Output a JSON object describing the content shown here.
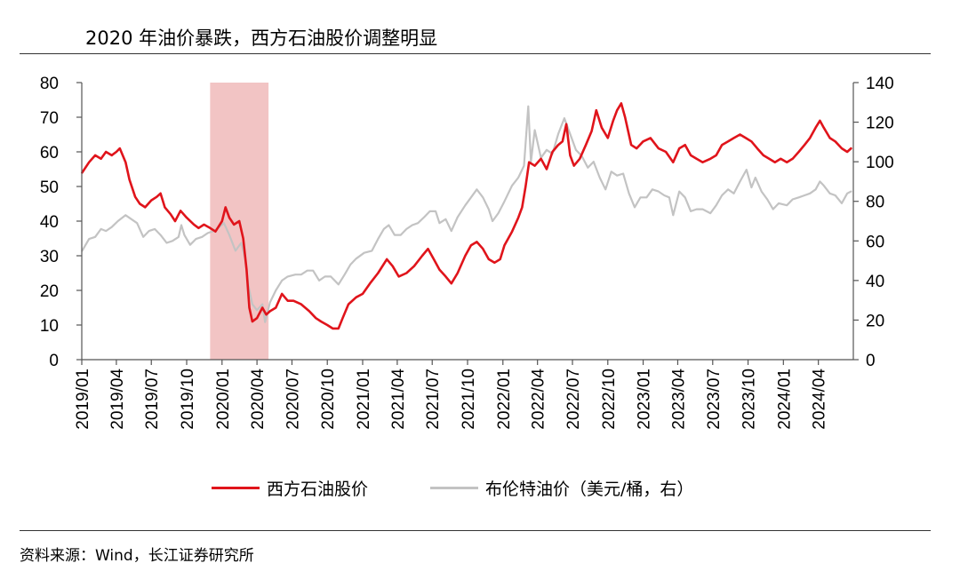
{
  "title": "2020 年油价暴跌，西方石油股价调整明显",
  "source": "资料来源：Wind，长江证券研究所",
  "chart_data": {
    "type": "line",
    "title": "2020 年油价暴跌，西方石油股价调整明显",
    "x_axis": {
      "type": "date",
      "range": [
        "2019-01",
        "2024-07"
      ],
      "tick_labels": [
        "2019/01",
        "2019/04",
        "2019/07",
        "2019/10",
        "2020/01",
        "2020/04",
        "2020/07",
        "2020/10",
        "2021/01",
        "2021/04",
        "2021/07",
        "2021/10",
        "2022/01",
        "2022/04",
        "2022/07",
        "2022/10",
        "2023/01",
        "2023/04",
        "2023/07",
        "2023/10",
        "2024/01",
        "2024/04"
      ]
    },
    "y_left": {
      "min": 0,
      "max": 80,
      "tick_labels": [
        "0",
        "10",
        "20",
        "30",
        "40",
        "50",
        "60",
        "70",
        "80"
      ]
    },
    "y_right": {
      "min": 0,
      "max": 140,
      "tick_labels": [
        "0",
        "20",
        "40",
        "60",
        "80",
        "100",
        "120",
        "140"
      ]
    },
    "shaded_region": {
      "from": "2019-12",
      "to": "2020-05",
      "color": "#f2c4c4"
    },
    "grid": false,
    "legend_position": "bottom",
    "series": [
      {
        "name": "西方石油股价",
        "axis": "left",
        "color": "#e0141b",
        "points": [
          [
            "2019-01-02",
            54
          ],
          [
            "2019-01-20",
            57
          ],
          [
            "2019-02-05",
            59
          ],
          [
            "2019-02-20",
            58
          ],
          [
            "2019-03-05",
            60
          ],
          [
            "2019-03-20",
            59
          ],
          [
            "2019-04-01",
            60
          ],
          [
            "2019-04-10",
            61
          ],
          [
            "2019-04-25",
            57
          ],
          [
            "2019-05-05",
            52
          ],
          [
            "2019-05-20",
            47
          ],
          [
            "2019-06-01",
            45
          ],
          [
            "2019-06-15",
            44
          ],
          [
            "2019-07-01",
            46
          ],
          [
            "2019-07-15",
            47
          ],
          [
            "2019-07-25",
            48
          ],
          [
            "2019-08-05",
            44
          ],
          [
            "2019-08-20",
            42
          ],
          [
            "2019-09-01",
            40
          ],
          [
            "2019-09-15",
            43
          ],
          [
            "2019-10-01",
            41
          ],
          [
            "2019-10-20",
            39
          ],
          [
            "2019-11-01",
            38
          ],
          [
            "2019-11-15",
            39
          ],
          [
            "2019-12-01",
            38
          ],
          [
            "2019-12-15",
            37
          ],
          [
            "2020-01-01",
            40
          ],
          [
            "2020-01-10",
            44
          ],
          [
            "2020-01-20",
            41
          ],
          [
            "2020-02-01",
            39
          ],
          [
            "2020-02-15",
            40
          ],
          [
            "2020-02-25",
            35
          ],
          [
            "2020-03-05",
            26
          ],
          [
            "2020-03-12",
            15
          ],
          [
            "2020-03-20",
            11
          ],
          [
            "2020-04-01",
            12
          ],
          [
            "2020-04-15",
            15
          ],
          [
            "2020-04-25",
            13
          ],
          [
            "2020-05-05",
            14
          ],
          [
            "2020-05-20",
            15
          ],
          [
            "2020-06-05",
            19
          ],
          [
            "2020-06-20",
            17
          ],
          [
            "2020-07-05",
            17
          ],
          [
            "2020-07-25",
            16
          ],
          [
            "2020-08-15",
            14
          ],
          [
            "2020-09-01",
            12
          ],
          [
            "2020-09-15",
            11
          ],
          [
            "2020-10-01",
            10
          ],
          [
            "2020-10-15",
            9
          ],
          [
            "2020-10-30",
            9
          ],
          [
            "2020-11-10",
            12
          ],
          [
            "2020-11-25",
            16
          ],
          [
            "2020-12-15",
            18
          ],
          [
            "2021-01-01",
            19
          ],
          [
            "2021-01-20",
            22
          ],
          [
            "2021-02-10",
            25
          ],
          [
            "2021-03-05",
            29
          ],
          [
            "2021-03-20",
            27
          ],
          [
            "2021-04-05",
            24
          ],
          [
            "2021-04-25",
            25
          ],
          [
            "2021-05-15",
            27
          ],
          [
            "2021-06-05",
            30
          ],
          [
            "2021-06-20",
            32
          ],
          [
            "2021-07-05",
            29
          ],
          [
            "2021-07-20",
            26
          ],
          [
            "2021-08-05",
            24
          ],
          [
            "2021-08-20",
            22
          ],
          [
            "2021-09-05",
            25
          ],
          [
            "2021-09-25",
            30
          ],
          [
            "2021-10-10",
            33
          ],
          [
            "2021-10-25",
            34
          ],
          [
            "2021-11-10",
            32
          ],
          [
            "2021-11-25",
            29
          ],
          [
            "2021-12-10",
            28
          ],
          [
            "2021-12-25",
            29
          ],
          [
            "2022-01-05",
            33
          ],
          [
            "2022-01-25",
            37
          ],
          [
            "2022-02-10",
            41
          ],
          [
            "2022-02-20",
            44
          ],
          [
            "2022-03-01",
            50
          ],
          [
            "2022-03-10",
            57
          ],
          [
            "2022-03-25",
            56
          ],
          [
            "2022-04-10",
            58
          ],
          [
            "2022-04-25",
            55
          ],
          [
            "2022-05-10",
            60
          ],
          [
            "2022-05-25",
            62
          ],
          [
            "2022-06-05",
            63
          ],
          [
            "2022-06-15",
            68
          ],
          [
            "2022-06-25",
            59
          ],
          [
            "2022-07-05",
            56
          ],
          [
            "2022-07-20",
            58
          ],
          [
            "2022-08-05",
            62
          ],
          [
            "2022-08-20",
            66
          ],
          [
            "2022-09-01",
            72
          ],
          [
            "2022-09-15",
            67
          ],
          [
            "2022-10-01",
            64
          ],
          [
            "2022-10-15",
            69
          ],
          [
            "2022-10-25",
            72
          ],
          [
            "2022-11-05",
            74
          ],
          [
            "2022-11-15",
            70
          ],
          [
            "2022-12-01",
            62
          ],
          [
            "2022-12-15",
            61
          ],
          [
            "2023-01-01",
            63
          ],
          [
            "2023-01-20",
            64
          ],
          [
            "2023-02-10",
            61
          ],
          [
            "2023-03-01",
            60
          ],
          [
            "2023-03-20",
            57
          ],
          [
            "2023-04-05",
            61
          ],
          [
            "2023-04-20",
            62
          ],
          [
            "2023-05-05",
            59
          ],
          [
            "2023-05-20",
            58
          ],
          [
            "2023-06-05",
            57
          ],
          [
            "2023-06-25",
            58
          ],
          [
            "2023-07-10",
            59
          ],
          [
            "2023-07-25",
            62
          ],
          [
            "2023-08-10",
            63
          ],
          [
            "2023-08-25",
            64
          ],
          [
            "2023-09-10",
            65
          ],
          [
            "2023-09-25",
            64
          ],
          [
            "2023-10-10",
            63
          ],
          [
            "2023-10-25",
            61
          ],
          [
            "2023-11-10",
            59
          ],
          [
            "2023-11-25",
            58
          ],
          [
            "2023-12-10",
            57
          ],
          [
            "2023-12-25",
            58
          ],
          [
            "2024-01-10",
            57
          ],
          [
            "2024-01-25",
            58
          ],
          [
            "2024-02-10",
            60
          ],
          [
            "2024-02-25",
            62
          ],
          [
            "2024-03-10",
            64
          ],
          [
            "2024-03-25",
            67
          ],
          [
            "2024-04-05",
            69
          ],
          [
            "2024-04-15",
            67
          ],
          [
            "2024-05-01",
            64
          ],
          [
            "2024-05-15",
            63
          ],
          [
            "2024-06-01",
            61
          ],
          [
            "2024-06-15",
            60
          ],
          [
            "2024-06-25",
            61
          ]
        ]
      },
      {
        "name": "布伦特油价（美元/桶，右）",
        "axis": "right",
        "color": "#c3c3c3",
        "points": [
          [
            "2019-01-02",
            55
          ],
          [
            "2019-01-20",
            61
          ],
          [
            "2019-02-05",
            62
          ],
          [
            "2019-02-20",
            66
          ],
          [
            "2019-03-05",
            65
          ],
          [
            "2019-03-20",
            67
          ],
          [
            "2019-04-05",
            70
          ],
          [
            "2019-04-25",
            73
          ],
          [
            "2019-05-10",
            71
          ],
          [
            "2019-05-25",
            69
          ],
          [
            "2019-06-10",
            62
          ],
          [
            "2019-06-25",
            65
          ],
          [
            "2019-07-10",
            66
          ],
          [
            "2019-07-25",
            63
          ],
          [
            "2019-08-10",
            59
          ],
          [
            "2019-08-25",
            60
          ],
          [
            "2019-09-10",
            62
          ],
          [
            "2019-09-17",
            68
          ],
          [
            "2019-09-25",
            63
          ],
          [
            "2019-10-10",
            58
          ],
          [
            "2019-10-25",
            61
          ],
          [
            "2019-11-10",
            62
          ],
          [
            "2019-11-25",
            64
          ],
          [
            "2019-12-10",
            65
          ],
          [
            "2019-12-25",
            67
          ],
          [
            "2020-01-06",
            69
          ],
          [
            "2020-01-20",
            63
          ],
          [
            "2020-02-05",
            55
          ],
          [
            "2020-02-20",
            59
          ],
          [
            "2020-03-01",
            51
          ],
          [
            "2020-03-10",
            37
          ],
          [
            "2020-03-20",
            28
          ],
          [
            "2020-04-01",
            25
          ],
          [
            "2020-04-15",
            28
          ],
          [
            "2020-04-22",
            19
          ],
          [
            "2020-05-05",
            29
          ],
          [
            "2020-05-20",
            35
          ],
          [
            "2020-06-05",
            40
          ],
          [
            "2020-06-20",
            42
          ],
          [
            "2020-07-10",
            43
          ],
          [
            "2020-07-25",
            43
          ],
          [
            "2020-08-10",
            45
          ],
          [
            "2020-08-25",
            45
          ],
          [
            "2020-09-10",
            40
          ],
          [
            "2020-09-25",
            42
          ],
          [
            "2020-10-10",
            42
          ],
          [
            "2020-10-30",
            38
          ],
          [
            "2020-11-15",
            43
          ],
          [
            "2020-11-30",
            48
          ],
          [
            "2020-12-15",
            51
          ],
          [
            "2021-01-05",
            54
          ],
          [
            "2021-01-25",
            55
          ],
          [
            "2021-02-10",
            61
          ],
          [
            "2021-02-25",
            66
          ],
          [
            "2021-03-10",
            68
          ],
          [
            "2021-03-25",
            63
          ],
          [
            "2021-04-10",
            63
          ],
          [
            "2021-04-25",
            66
          ],
          [
            "2021-05-10",
            68
          ],
          [
            "2021-05-25",
            69
          ],
          [
            "2021-06-10",
            72
          ],
          [
            "2021-06-25",
            75
          ],
          [
            "2021-07-10",
            75
          ],
          [
            "2021-07-20",
            69
          ],
          [
            "2021-08-05",
            71
          ],
          [
            "2021-08-20",
            65
          ],
          [
            "2021-09-05",
            72
          ],
          [
            "2021-09-25",
            78
          ],
          [
            "2021-10-10",
            82
          ],
          [
            "2021-10-25",
            86
          ],
          [
            "2021-11-10",
            82
          ],
          [
            "2021-11-25",
            76
          ],
          [
            "2021-12-05",
            70
          ],
          [
            "2021-12-20",
            74
          ],
          [
            "2022-01-05",
            80
          ],
          [
            "2022-01-25",
            88
          ],
          [
            "2022-02-10",
            92
          ],
          [
            "2022-02-25",
            98
          ],
          [
            "2022-03-08",
            128
          ],
          [
            "2022-03-15",
            100
          ],
          [
            "2022-03-25",
            116
          ],
          [
            "2022-04-10",
            102
          ],
          [
            "2022-04-25",
            106
          ],
          [
            "2022-05-10",
            104
          ],
          [
            "2022-05-25",
            114
          ],
          [
            "2022-06-10",
            122
          ],
          [
            "2022-06-25",
            114
          ],
          [
            "2022-07-10",
            106
          ],
          [
            "2022-07-25",
            103
          ],
          [
            "2022-08-10",
            97
          ],
          [
            "2022-08-25",
            100
          ],
          [
            "2022-09-10",
            92
          ],
          [
            "2022-09-25",
            86
          ],
          [
            "2022-10-10",
            95
          ],
          [
            "2022-10-25",
            93
          ],
          [
            "2022-11-10",
            94
          ],
          [
            "2022-11-25",
            84
          ],
          [
            "2022-12-10",
            77
          ],
          [
            "2022-12-25",
            82
          ],
          [
            "2023-01-10",
            82
          ],
          [
            "2023-01-25",
            86
          ],
          [
            "2023-02-10",
            85
          ],
          [
            "2023-02-25",
            83
          ],
          [
            "2023-03-10",
            82
          ],
          [
            "2023-03-20",
            73
          ],
          [
            "2023-04-05",
            85
          ],
          [
            "2023-04-20",
            82
          ],
          [
            "2023-05-05",
            75
          ],
          [
            "2023-05-20",
            76
          ],
          [
            "2023-06-05",
            76
          ],
          [
            "2023-06-25",
            74
          ],
          [
            "2023-07-10",
            78
          ],
          [
            "2023-07-25",
            83
          ],
          [
            "2023-08-10",
            86
          ],
          [
            "2023-08-25",
            84
          ],
          [
            "2023-09-10",
            90
          ],
          [
            "2023-09-27",
            96
          ],
          [
            "2023-10-10",
            87
          ],
          [
            "2023-10-20",
            92
          ],
          [
            "2023-11-05",
            85
          ],
          [
            "2023-11-20",
            81
          ],
          [
            "2023-12-05",
            76
          ],
          [
            "2023-12-20",
            79
          ],
          [
            "2024-01-10",
            78
          ],
          [
            "2024-01-25",
            81
          ],
          [
            "2024-02-10",
            82
          ],
          [
            "2024-02-25",
            83
          ],
          [
            "2024-03-10",
            84
          ],
          [
            "2024-03-25",
            86
          ],
          [
            "2024-04-05",
            90
          ],
          [
            "2024-04-15",
            88
          ],
          [
            "2024-05-01",
            84
          ],
          [
            "2024-05-15",
            83
          ],
          [
            "2024-06-01",
            79
          ],
          [
            "2024-06-15",
            84
          ],
          [
            "2024-06-25",
            85
          ]
        ]
      }
    ]
  }
}
